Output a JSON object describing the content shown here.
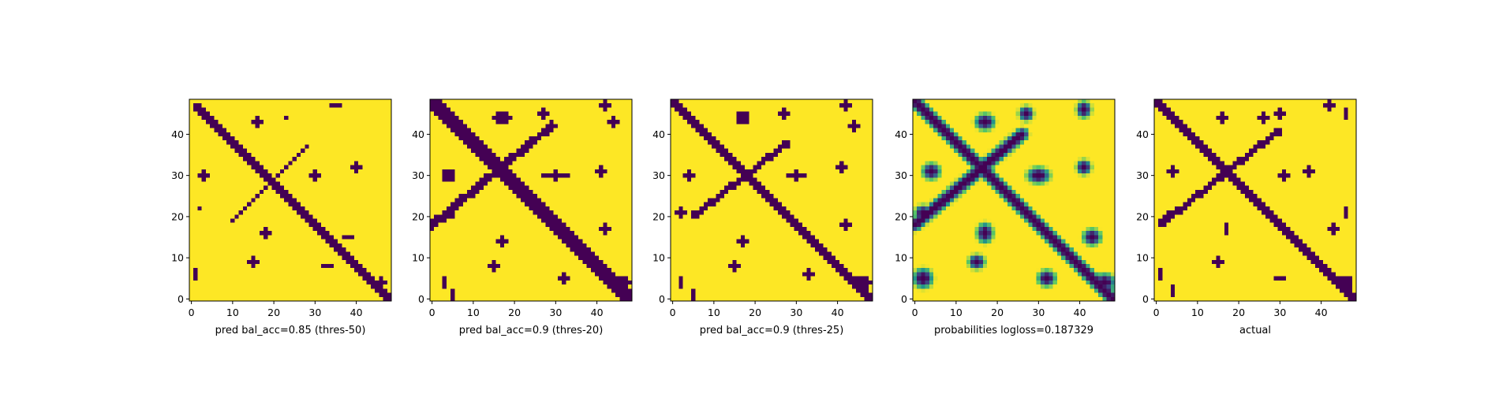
{
  "figure": {
    "colormap": {
      "low": "#440154",
      "mid_low": "#3b528b",
      "mid": "#21918c",
      "mid_high": "#5ec962",
      "high": "#fde725"
    },
    "axis_color": "#000000"
  },
  "chart_data": [
    {
      "type": "heatmap",
      "title": "",
      "xlabel": "pred bal_acc=0.85 (thres-50)",
      "ylabel": "",
      "size": 49,
      "xlim": [
        -0.5,
        48.5
      ],
      "ylim": [
        48.5,
        -0.5
      ],
      "xticks": [
        0,
        10,
        20,
        30,
        40
      ],
      "yticks": [
        0,
        10,
        20,
        30,
        40
      ],
      "style": "binary",
      "diagonal_width": 1.6,
      "diagonal_start": 1,
      "anti_diagonal": {
        "from": [
          28,
          11
        ],
        "to": [
          10,
          29
        ],
        "width": 0.7
      },
      "blobs": [
        [
          35,
          1,
          1.2,
          0.8
        ],
        [
          16,
          5,
          1.6,
          1.2
        ],
        [
          23,
          4,
          0.7,
          0.9
        ],
        [
          3,
          18,
          1.0,
          1.4
        ],
        [
          30,
          18,
          1.4,
          1.0
        ],
        [
          40,
          16,
          1.0,
          1.3
        ],
        [
          18,
          32,
          1.0,
          1.4
        ],
        [
          15,
          39,
          1.3,
          1.0
        ],
        [
          1,
          42,
          0.8,
          1.5
        ],
        [
          2,
          26,
          0.8,
          0.8
        ],
        [
          38,
          33,
          1.0,
          0.8
        ],
        [
          33,
          40,
          1.0,
          0.8
        ],
        [
          46,
          44,
          1.6,
          1.2
        ]
      ]
    },
    {
      "type": "heatmap",
      "title": "",
      "xlabel": "pred bal_acc=0.9 (thres-20)",
      "ylabel": "",
      "size": 49,
      "xlim": [
        -0.5,
        48.5
      ],
      "ylim": [
        48.5,
        -0.5
      ],
      "xticks": [
        0,
        10,
        20,
        30,
        40
      ],
      "yticks": [
        0,
        10,
        20,
        30,
        40
      ],
      "style": "binary",
      "diagonal_width": 2.0,
      "diagonal_start": 0,
      "anti_diagonal": {
        "from": [
          29,
          6
        ],
        "to": [
          0,
          30
        ],
        "width": 1.0
      },
      "blobs": [
        [
          17,
          4,
          2.0,
          1.5
        ],
        [
          27,
          3,
          1.2,
          1.4
        ],
        [
          42,
          1,
          1.0,
          1.5
        ],
        [
          44,
          5,
          1.0,
          1.0
        ],
        [
          4,
          18,
          1.6,
          1.3
        ],
        [
          30,
          18,
          3.0,
          1.0
        ],
        [
          41,
          17,
          1.0,
          1.0
        ],
        [
          17,
          34,
          1.2,
          1.8
        ],
        [
          15,
          40,
          1.6,
          1.2
        ],
        [
          3,
          28,
          2.2,
          1.0
        ],
        [
          42,
          31,
          1.2,
          1.0
        ],
        [
          32,
          43,
          1.3,
          1.0
        ],
        [
          3,
          44,
          0.8,
          1.5
        ],
        [
          5,
          47,
          0.8,
          1.0
        ],
        [
          46,
          44,
          2.0,
          1.6
        ]
      ]
    },
    {
      "type": "heatmap",
      "title": "",
      "xlabel": "pred bal_acc=0.9 (thres-25)",
      "ylabel": "",
      "size": 49,
      "xlim": [
        -0.5,
        48.5
      ],
      "ylim": [
        48.5,
        -0.5
      ],
      "xticks": [
        0,
        10,
        20,
        30,
        40
      ],
      "yticks": [
        0,
        10,
        20,
        30,
        40
      ],
      "style": "binary",
      "diagonal_width": 1.8,
      "diagonal_start": 0,
      "anti_diagonal": {
        "from": [
          28,
          10
        ],
        "to": [
          5,
          28
        ],
        "width": 0.8
      },
      "blobs": [
        [
          17,
          4,
          1.8,
          1.4
        ],
        [
          27,
          3,
          1.0,
          1.3
        ],
        [
          42,
          1,
          1.0,
          1.5
        ],
        [
          44,
          6,
          1.0,
          1.0
        ],
        [
          4,
          18,
          1.4,
          1.2
        ],
        [
          30,
          18,
          2.6,
          1.0
        ],
        [
          41,
          16,
          1.0,
          1.0
        ],
        [
          17,
          34,
          1.2,
          1.8
        ],
        [
          15,
          40,
          1.5,
          1.2
        ],
        [
          2,
          27,
          1.6,
          1.0
        ],
        [
          42,
          30,
          1.0,
          1.0
        ],
        [
          33,
          42,
          1.2,
          1.0
        ],
        [
          2,
          44,
          0.8,
          1.3
        ],
        [
          5,
          47,
          0.8,
          1.0
        ],
        [
          46,
          44,
          2.0,
          1.6
        ]
      ]
    },
    {
      "type": "heatmap",
      "title": "",
      "xlabel": "probabilities logloss=0.187329",
      "ylabel": "",
      "size": 49,
      "xlim": [
        -0.5,
        48.5
      ],
      "ylim": [
        48.5,
        -0.5
      ],
      "xticks": [
        0,
        10,
        20,
        30,
        40
      ],
      "yticks": [
        0,
        10,
        20,
        30,
        40
      ],
      "style": "probability",
      "diagonal_width": 2.2,
      "diagonal_start": 0,
      "anti_diagonal": {
        "from": [
          26,
          8
        ],
        "to": [
          0,
          30
        ],
        "width": 1.6
      },
      "blobs": [
        [
          17,
          5,
          2.4,
          2.0
        ],
        [
          27,
          3,
          1.8,
          1.8
        ],
        [
          41,
          2,
          1.8,
          2.0
        ],
        [
          4,
          17,
          2.2,
          2.0
        ],
        [
          30,
          18,
          2.8,
          2.0
        ],
        [
          41,
          16,
          1.8,
          1.8
        ],
        [
          17,
          32,
          2.0,
          2.4
        ],
        [
          15,
          39,
          2.0,
          1.8
        ],
        [
          2,
          27,
          2.0,
          1.8
        ],
        [
          43,
          33,
          2.2,
          2.0
        ],
        [
          32,
          43,
          2.2,
          2.0
        ],
        [
          2,
          43,
          2.4,
          2.4
        ],
        [
          46,
          44,
          2.6,
          2.2
        ]
      ]
    },
    {
      "type": "heatmap",
      "title": "",
      "xlabel": "actual",
      "ylabel": "",
      "size": 49,
      "xlim": [
        -0.5,
        48.5
      ],
      "ylim": [
        48.5,
        -0.5
      ],
      "xticks": [
        0,
        10,
        20,
        30,
        40
      ],
      "yticks": [
        0,
        10,
        20,
        30,
        40
      ],
      "style": "binary",
      "diagonal_width": 1.9,
      "diagonal_start": 0,
      "anti_diagonal": {
        "from": [
          30,
          7
        ],
        "to": [
          1,
          30
        ],
        "width": 0.8
      },
      "blobs": [
        [
          16,
          4,
          1.6,
          1.2
        ],
        [
          26,
          4,
          1.0,
          1.0
        ],
        [
          30,
          3,
          1.0,
          1.0
        ],
        [
          42,
          1,
          1.0,
          1.3
        ],
        [
          46,
          3,
          0.7,
          1.0
        ],
        [
          4,
          17,
          1.4,
          1.1
        ],
        [
          31,
          18,
          1.6,
          1.0
        ],
        [
          37,
          17,
          1.2,
          1.2
        ],
        [
          46,
          27,
          0.8,
          1.6
        ],
        [
          17,
          31,
          0.8,
          1.2
        ],
        [
          15,
          39,
          1.6,
          1.0
        ],
        [
          3,
          28,
          1.0,
          1.6
        ],
        [
          43,
          31,
          1.2,
          1.0
        ],
        [
          1,
          42,
          0.8,
          1.3
        ],
        [
          4,
          46,
          0.8,
          1.0
        ],
        [
          30,
          43,
          1.2,
          0.8
        ],
        [
          46,
          44,
          1.6,
          1.4
        ]
      ]
    }
  ]
}
